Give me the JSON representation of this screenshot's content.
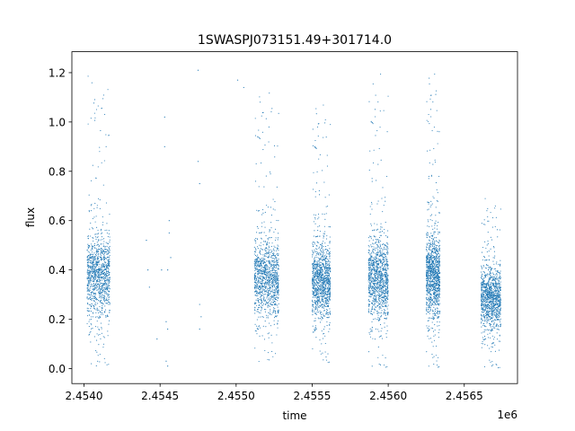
{
  "chart_data": {
    "type": "scatter",
    "title": "1SWASPJ073151.49+301714.0",
    "xlabel": "time",
    "ylabel": "flux",
    "x_offset_label": "1e6",
    "xlim": [
      2.45392,
      2.45685
    ],
    "ylim": [
      -0.061,
      1.285
    ],
    "x_ticks": [
      2.454,
      2.4545,
      2.455,
      2.4555,
      2.456,
      2.4565
    ],
    "x_tick_labels": [
      "2.4540",
      "2.4545",
      "2.4550",
      "2.4555",
      "2.4560",
      "2.4565"
    ],
    "y_ticks": [
      0.0,
      0.2,
      0.4,
      0.6,
      0.8,
      1.0,
      1.2
    ],
    "y_tick_labels": [
      "0.0",
      "0.2",
      "0.4",
      "0.6",
      "0.8",
      "1.0",
      "1.2"
    ],
    "grid": false,
    "point_color": "#1f77b4",
    "observing_seasons": [
      {
        "x_start": 2.45402,
        "x_end": 2.45417,
        "y_min": 0.01,
        "y_max": 1.21,
        "y_center": 0.38
      },
      {
        "x_start": 2.45512,
        "x_end": 2.45528,
        "y_min": 0.02,
        "y_max": 1.15,
        "y_center": 0.37
      },
      {
        "x_start": 2.4555,
        "x_end": 2.45562,
        "y_min": 0.02,
        "y_max": 1.1,
        "y_center": 0.36
      },
      {
        "x_start": 2.45587,
        "x_end": 2.456,
        "y_min": 0.0,
        "y_max": 1.23,
        "y_center": 0.37
      },
      {
        "x_start": 2.45625,
        "x_end": 2.45634,
        "y_min": 0.0,
        "y_max": 1.23,
        "y_center": 0.38
      },
      {
        "x_start": 2.45661,
        "x_end": 2.45674,
        "y_min": 0.0,
        "y_max": 0.72,
        "y_center": 0.29
      }
    ],
    "sparse_points": [
      {
        "x": 2.45441,
        "y": 0.52
      },
      {
        "x": 2.45442,
        "y": 0.4
      },
      {
        "x": 2.45443,
        "y": 0.33
      },
      {
        "x": 2.45451,
        "y": 0.4
      },
      {
        "x": 2.45453,
        "y": 1.02
      },
      {
        "x": 2.45453,
        "y": 0.9
      },
      {
        "x": 2.45454,
        "y": 0.19
      },
      {
        "x": 2.45455,
        "y": 0.16
      },
      {
        "x": 2.45455,
        "y": 0.4
      },
      {
        "x": 2.45456,
        "y": 0.55
      },
      {
        "x": 2.45457,
        "y": 0.45
      },
      {
        "x": 2.45454,
        "y": 0.03
      },
      {
        "x": 2.45455,
        "y": 0.01
      },
      {
        "x": 2.45456,
        "y": 0.6
      },
      {
        "x": 2.45448,
        "y": 0.12
      },
      {
        "x": 2.45475,
        "y": 1.21
      },
      {
        "x": 2.45475,
        "y": 0.84
      },
      {
        "x": 2.45476,
        "y": 0.75
      },
      {
        "x": 2.45476,
        "y": 0.26
      },
      {
        "x": 2.45477,
        "y": 0.21
      },
      {
        "x": 2.45476,
        "y": 0.16
      },
      {
        "x": 2.45501,
        "y": 1.17
      },
      {
        "x": 2.45505,
        "y": 1.14
      }
    ]
  }
}
